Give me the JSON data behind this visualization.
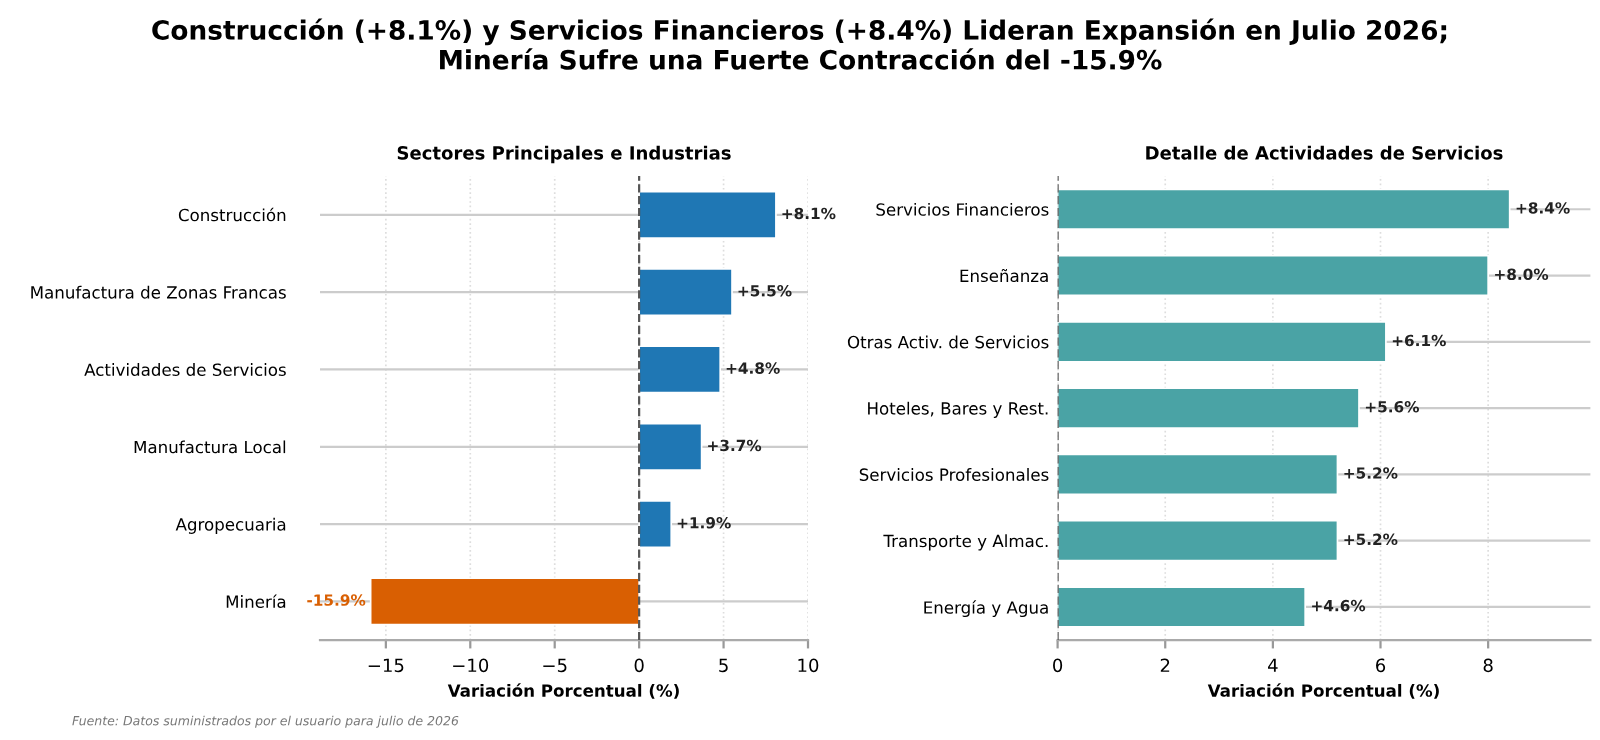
{
  "chart_data": [
    {
      "type": "bar",
      "orientation": "horizontal",
      "subtitle": "Construcción (+8.1%) y Servicios Financieros (+8.4%) Lideran Expansión en Julio 2026;\nMinería Sufre una Fuerte Contracción del -15.9%",
      "title": "Sectores Principales e Industrias",
      "xlabel": "Variación Porcentual (%)",
      "categories": [
        "Construcción",
        "Manufactura de Zonas Francas",
        "Actividades de Servicios",
        "Manufactura Local",
        "Agropecuaria",
        "Minería"
      ],
      "values": [
        8.1,
        5.5,
        4.8,
        3.7,
        1.9,
        -15.9
      ],
      "colors": [
        "#1f77b4",
        "#1f77b4",
        "#1f77b4",
        "#1f77b4",
        "#1f77b4",
        "#d95f02"
      ],
      "value_labels": [
        "+8.1%",
        "+5.5%",
        "+4.8%",
        "+3.7%",
        "+1.9%",
        "-15.9%"
      ],
      "xlim": [
        -18.9,
        10
      ],
      "xticks": [
        {
          "value": -15,
          "label": "−15"
        },
        {
          "value": -10,
          "label": "−10"
        },
        {
          "value": -5,
          "label": "−5"
        },
        0,
        5,
        10
      ],
      "grid": true,
      "ref_lines": [
        {
          "axis": "x",
          "value": 0,
          "color": "#555555",
          "line_style": "dashed"
        }
      ],
      "annotations": [
        "Fuente: Datos suministrados por el usuario para julio de 2026"
      ]
    },
    {
      "type": "bar",
      "orientation": "horizontal",
      "title": "Detalle de Actividades de Servicios",
      "xlabel": "Variación Porcentual (%)",
      "categories": [
        "Servicios Financieros",
        "Enseñanza",
        "Otras Activ. de Servicios",
        "Hoteles, Bares y Rest.",
        "Servicios Profesionales",
        "Transporte y Almac.",
        "Energía y Agua"
      ],
      "values": [
        8.4,
        8.0,
        6.1,
        5.6,
        5.2,
        5.2,
        4.6
      ],
      "colors": [
        "#4aa3a5",
        "#4aa3a5",
        "#4aa3a5",
        "#4aa3a5",
        "#4aa3a5",
        "#4aa3a5",
        "#4aa3a5"
      ],
      "value_labels": [
        "+8.4%",
        "+8.0%",
        "+6.1%",
        "+5.6%",
        "+5.2%",
        "+5.2%",
        "+4.6%"
      ],
      "xlim": [
        0,
        9.9
      ],
      "xticks": [
        0,
        2,
        4,
        6,
        8
      ],
      "grid": true,
      "ref_lines": [
        {
          "axis": "x",
          "value": 0,
          "color": "#555555",
          "line_style": "dashed"
        }
      ]
    }
  ]
}
